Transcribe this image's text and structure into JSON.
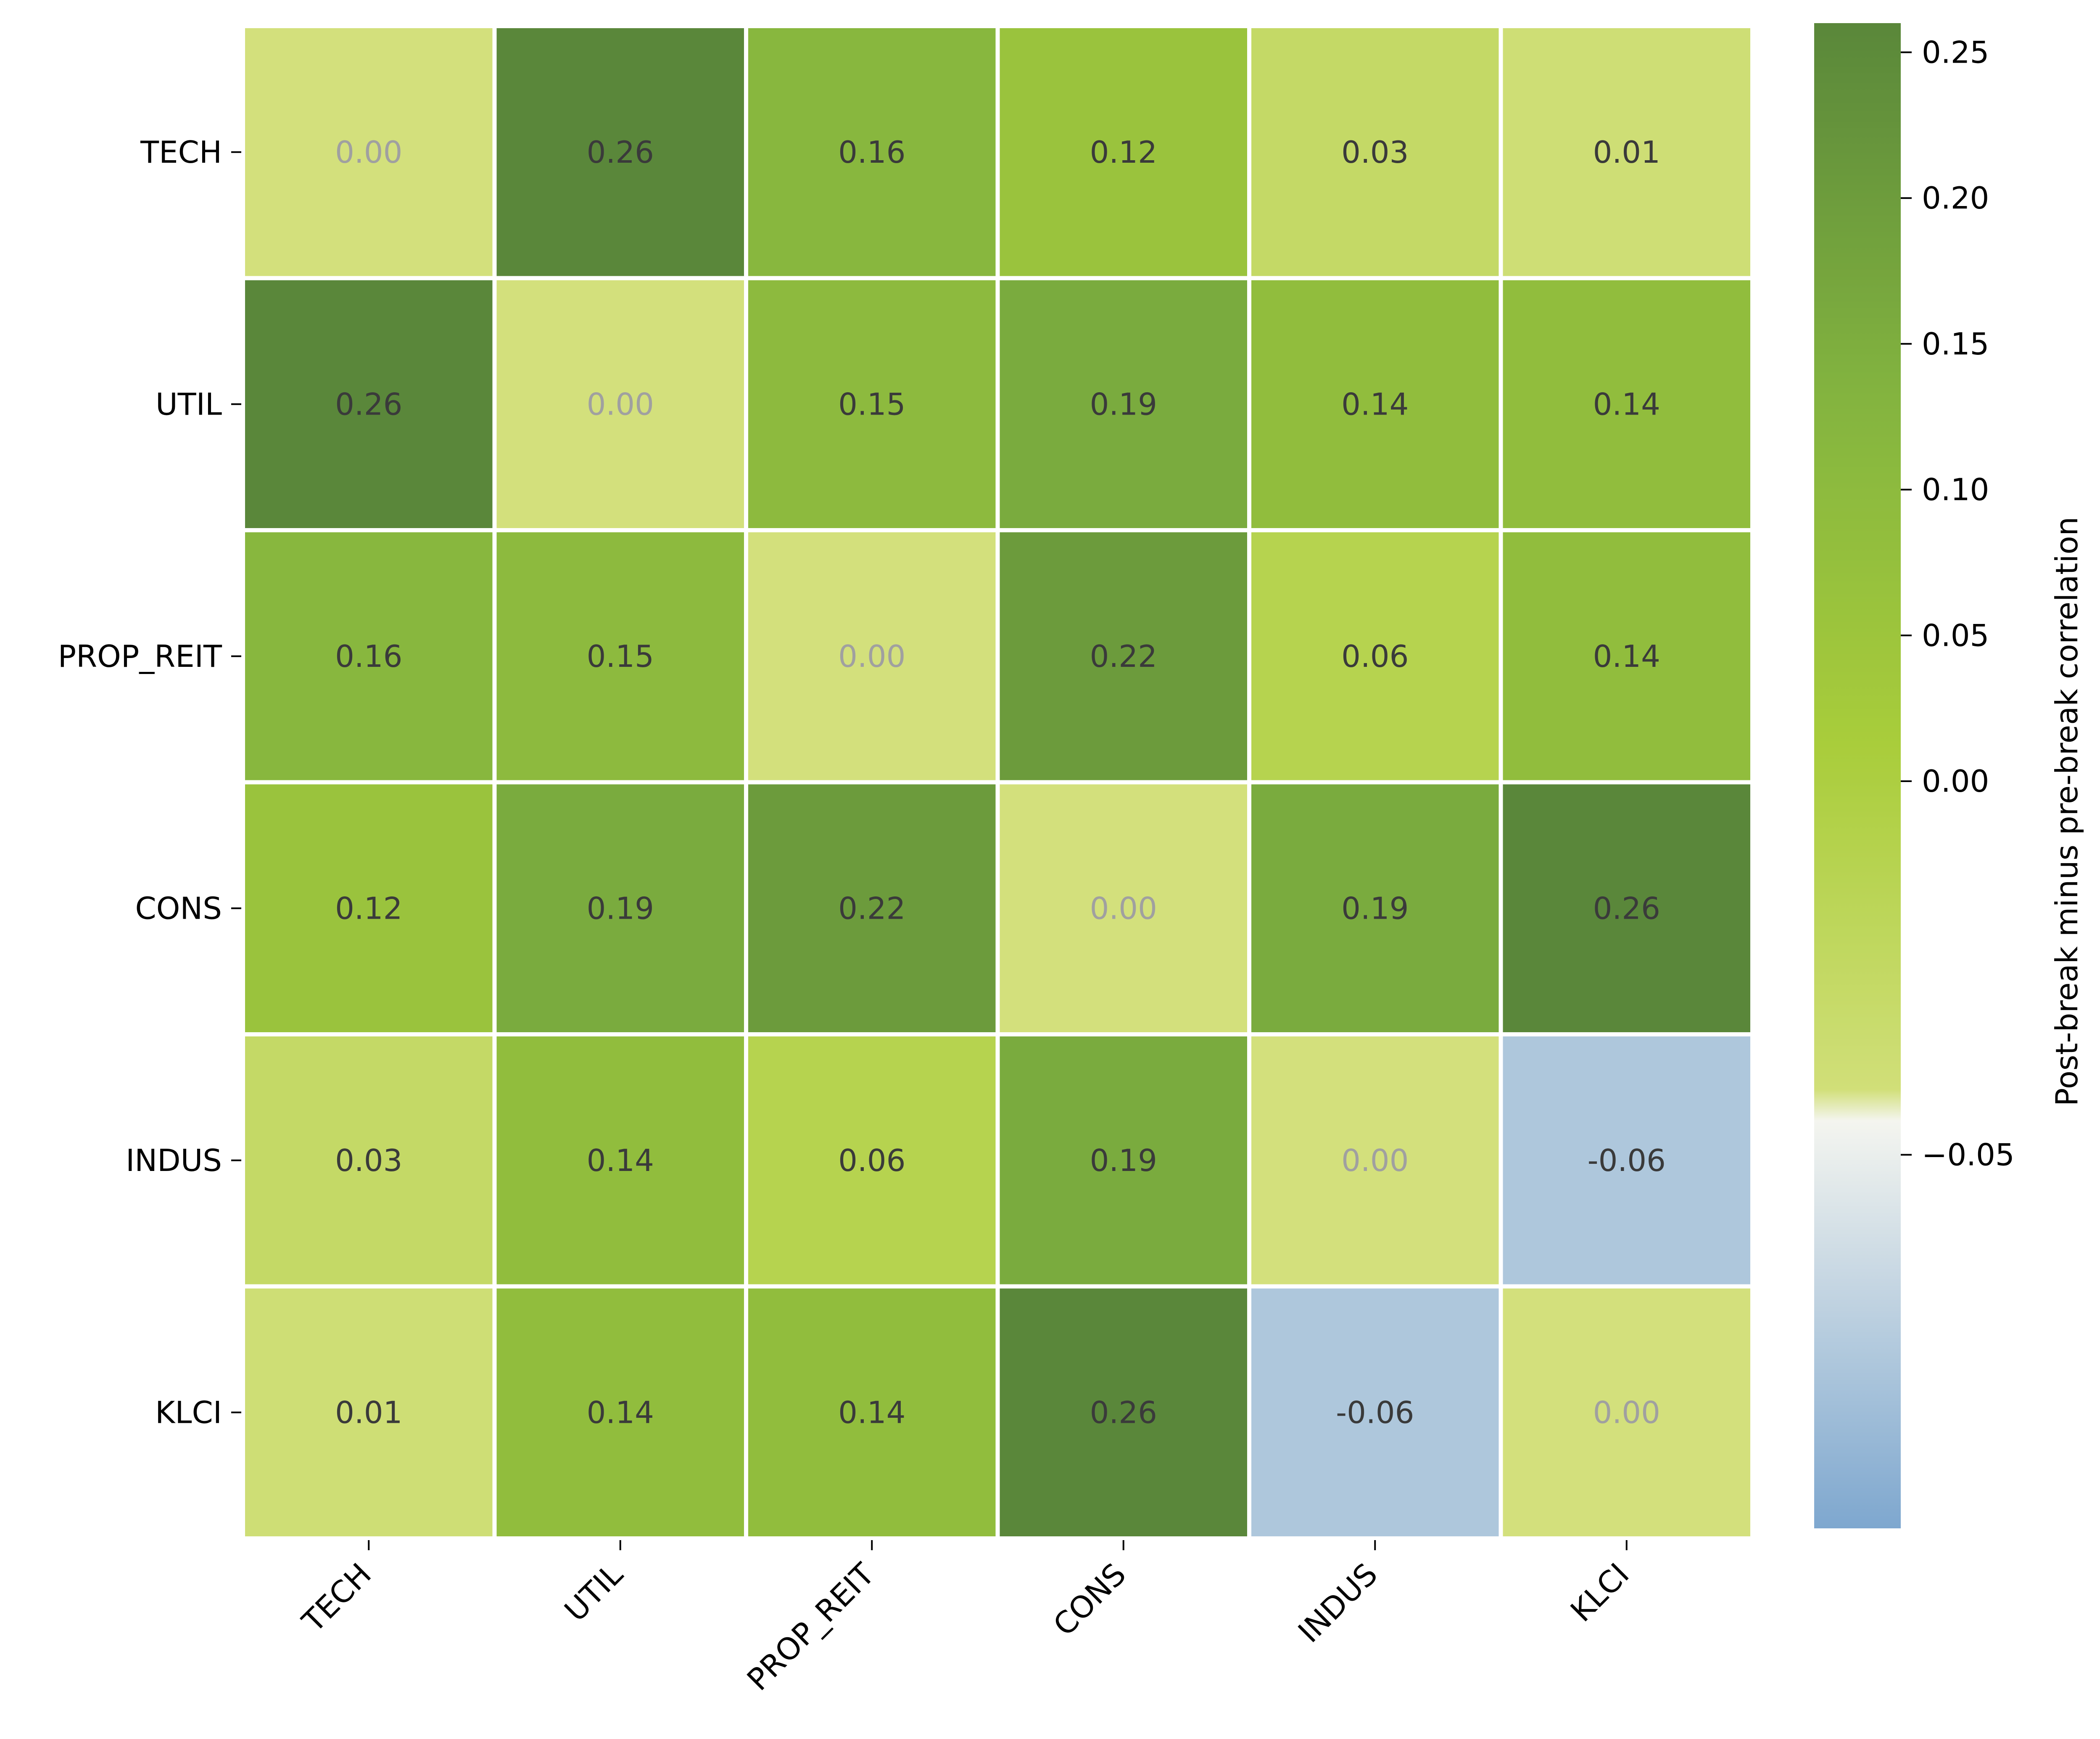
{
  "chart_data": {
    "type": "heatmap",
    "title": "",
    "xlabel": "",
    "ylabel": "",
    "x_categories": [
      "TECH",
      "UTIL",
      "PROP_REIT",
      "CONS",
      "INDUS",
      "KLCI"
    ],
    "y_categories": [
      "TECH",
      "UTIL",
      "PROP_REIT",
      "CONS",
      "INDUS",
      "KLCI"
    ],
    "values": [
      [
        0.0,
        0.26,
        0.16,
        0.12,
        0.03,
        0.01
      ],
      [
        0.26,
        0.0,
        0.15,
        0.19,
        0.14,
        0.14
      ],
      [
        0.16,
        0.15,
        0.0,
        0.22,
        0.06,
        0.14
      ],
      [
        0.12,
        0.19,
        0.22,
        0.0,
        0.19,
        0.26
      ],
      [
        0.03,
        0.14,
        0.06,
        0.19,
        0.0,
        -0.06
      ],
      [
        0.01,
        0.14,
        0.14,
        0.26,
        -0.06,
        0.0
      ]
    ],
    "cell_labels": [
      [
        "0.00",
        "0.26",
        "0.16",
        "0.12",
        "0.03",
        "0.01"
      ],
      [
        "0.26",
        "0.00",
        "0.15",
        "0.19",
        "0.14",
        "0.14"
      ],
      [
        "0.16",
        "0.15",
        "0.00",
        "0.22",
        "0.06",
        "0.14"
      ],
      [
        "0.12",
        "0.19",
        "0.22",
        "0.00",
        "0.19",
        "0.26"
      ],
      [
        "0.03",
        "0.14",
        "0.06",
        "0.19",
        "0.00",
        "-0.06"
      ],
      [
        "0.01",
        "0.14",
        "0.14",
        "0.26",
        "-0.06",
        "0.00"
      ]
    ],
    "colorbar": {
      "label": "Post-break minus pre-break correlation",
      "vmin": -0.1,
      "vmax": 0.26,
      "center": 0.0,
      "ticks": [
        -0.05,
        0.0,
        0.05,
        0.1,
        0.15,
        0.2,
        0.25
      ],
      "tick_labels": [
        "−0.05",
        "0.00",
        "0.05",
        "0.10",
        "0.15",
        "0.20",
        "0.25"
      ]
    },
    "colors": {
      "negative_end": "#7ea7cf",
      "center": "#f7f7f0",
      "positive_stops": [
        "#f7f7f0",
        "#eef2c2",
        "#d3e07c",
        "#a9cd3b",
        "#82b33f",
        "#5a873a"
      ],
      "diagonal_text": "#a0a0a0",
      "value_text": "#3a3a3a",
      "grid_line": "#ffffff"
    }
  }
}
